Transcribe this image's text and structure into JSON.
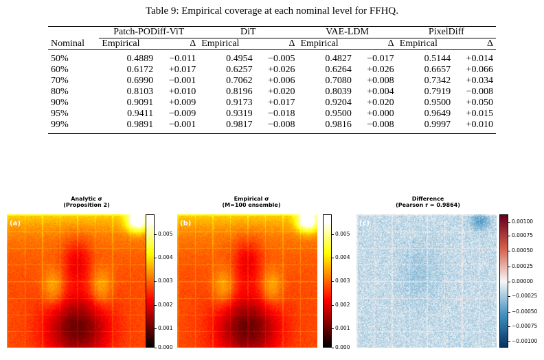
{
  "caption": "Table 9: Empirical coverage at each nominal level for FFHQ.",
  "table": {
    "nominal_header": "Nominal",
    "groups": [
      "Patch-PODiff-ViT",
      "DiT",
      "VAE-LDM",
      "PixelDiff"
    ],
    "sub_empirical": "Empirical",
    "sub_delta": "Δ",
    "rows": [
      {
        "nominal": "50%",
        "cells": [
          [
            "0.4889",
            "−0.011"
          ],
          [
            "0.4954",
            "−0.005"
          ],
          [
            "0.4827",
            "−0.017"
          ],
          [
            "0.5144",
            "+0.014"
          ]
        ]
      },
      {
        "nominal": "60%",
        "cells": [
          [
            "0.6172",
            "+0.017"
          ],
          [
            "0.6257",
            "+0.026"
          ],
          [
            "0.6264",
            "+0.026"
          ],
          [
            "0.6657",
            "+0.066"
          ]
        ]
      },
      {
        "nominal": "70%",
        "cells": [
          [
            "0.6990",
            "−0.001"
          ],
          [
            "0.7062",
            "+0.006"
          ],
          [
            "0.7080",
            "+0.008"
          ],
          [
            "0.7342",
            "+0.034"
          ]
        ]
      },
      {
        "nominal": "80%",
        "cells": [
          [
            "0.8103",
            "+0.010"
          ],
          [
            "0.8196",
            "+0.020"
          ],
          [
            "0.8039",
            "+0.004"
          ],
          [
            "0.7919",
            "−0.008"
          ]
        ]
      },
      {
        "nominal": "90%",
        "cells": [
          [
            "0.9091",
            "+0.009"
          ],
          [
            "0.9173",
            "+0.017"
          ],
          [
            "0.9204",
            "+0.020"
          ],
          [
            "0.9500",
            "+0.050"
          ]
        ]
      },
      {
        "nominal": "95%",
        "cells": [
          [
            "0.9411",
            "−0.009"
          ],
          [
            "0.9319",
            "−0.018"
          ],
          [
            "0.9500",
            "+0.000"
          ],
          [
            "0.9649",
            "+0.015"
          ]
        ]
      },
      {
        "nominal": "99%",
        "cells": [
          [
            "0.9891",
            "−0.001"
          ],
          [
            "0.9817",
            "−0.008"
          ],
          [
            "0.9816",
            "−0.008"
          ],
          [
            "0.9997",
            "+0.010"
          ]
        ]
      }
    ]
  },
  "figure": {
    "panels": [
      {
        "label": "(a)",
        "title_line1": "Analytic σ",
        "title_line2": "(Proposition 2)",
        "colormap": "hot",
        "colorbar_ticks": [
          "0.005",
          "0.004",
          "0.003",
          "0.002",
          "0.001",
          "0.000"
        ]
      },
      {
        "label": "(b)",
        "title_line1": "Empirical σ",
        "title_line2": "(M=100 ensemble)",
        "colormap": "hot",
        "colorbar_ticks": [
          "0.005",
          "0.004",
          "0.003",
          "0.002",
          "0.001",
          "0.000"
        ]
      },
      {
        "label": "(c)",
        "title_line1": "Difference",
        "title_line2": "(Pearson r = 0.9864)",
        "colormap": "diverging-red-blue",
        "colorbar_ticks": [
          "0.00100",
          "0.00075",
          "0.00050",
          "0.00025",
          "0.00000",
          "−0.00025",
          "−0.00050",
          "−0.00075",
          "−0.00100"
        ]
      }
    ]
  }
}
